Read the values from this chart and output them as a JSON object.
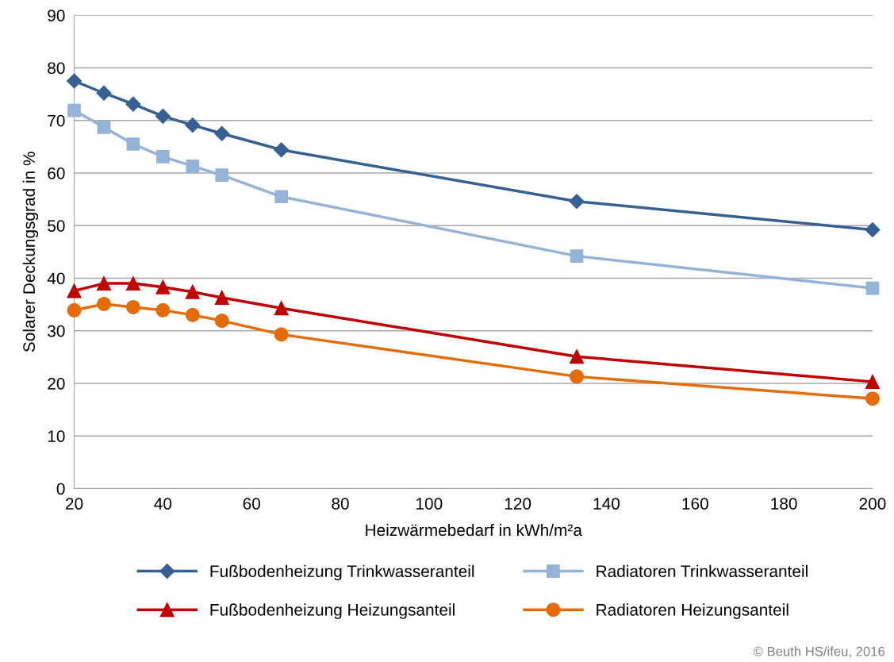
{
  "chart_data": {
    "type": "line",
    "xlabel": "Heizwärmebedarf in kWh/m²a",
    "ylabel": "Solarer Deckungsgrad in %",
    "x": [
      20,
      26.7,
      33.3,
      40,
      46.7,
      53.3,
      66.7,
      133.3,
      200
    ],
    "series": [
      {
        "name": "Fußbodenheizung Trinkwasseranteil",
        "color": "#376092",
        "marker": "diamond",
        "values": [
          77.5,
          75.2,
          73.1,
          70.8,
          69.1,
          67.5,
          64.4,
          54.6,
          49.2
        ]
      },
      {
        "name": "Radiatoren Trinkwasseranteil",
        "color": "#95b3d7",
        "marker": "square",
        "values": [
          71.9,
          68.7,
          65.5,
          63.1,
          61.3,
          59.6,
          55.5,
          44.2,
          38.1
        ]
      },
      {
        "name": "Fußbodenheizung Heizungsanteil",
        "color": "#c00000",
        "marker": "triangle",
        "values": [
          37.6,
          39.0,
          39.0,
          38.3,
          37.4,
          36.3,
          34.3,
          25.1,
          20.3
        ]
      },
      {
        "name": "Radiatoren Heizungsanteil",
        "color": "#e46c0a",
        "marker": "circle",
        "values": [
          33.9,
          35.1,
          34.5,
          33.9,
          33.0,
          31.9,
          29.3,
          21.3,
          17.1
        ]
      }
    ],
    "xlim": [
      20,
      200
    ],
    "xticks": [
      20,
      40,
      60,
      80,
      100,
      120,
      140,
      160,
      180,
      200
    ],
    "ylim": [
      0,
      90
    ],
    "yticks": [
      0,
      10,
      20,
      30,
      40,
      50,
      60,
      70,
      80,
      90
    ],
    "grid": "y",
    "legend": "bottom",
    "line_style": "solid",
    "annotations": [
      "© Beuth HS/ifeu, 2016"
    ]
  }
}
